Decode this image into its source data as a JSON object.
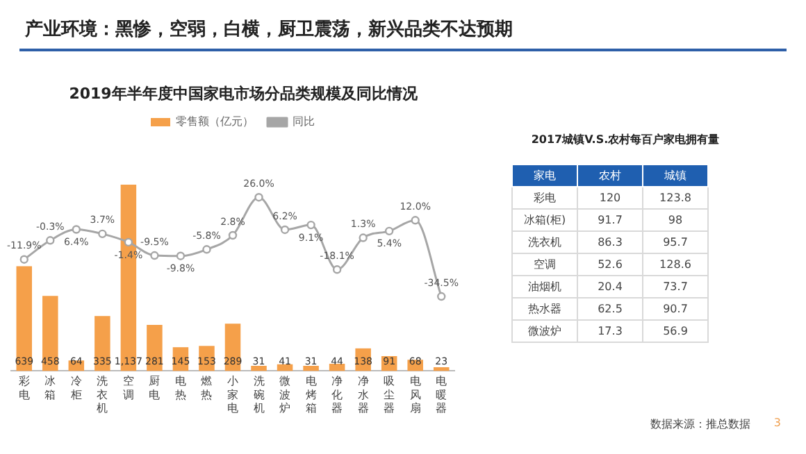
{
  "chart_data": [
    {
      "type": "bar",
      "title": "2019年半年度中国家电市场分品类规模及同比情况",
      "annotations": [
        "产业环境：黑惨，空弱，白横，厨卫震荡，新兴品类不达预期"
      ],
      "categories": [
        "彩电",
        "冰箱",
        "冷柜",
        "洗衣机",
        "空调",
        "厨电",
        "电热",
        "燃热",
        "小家电",
        "洗碗机",
        "微波炉",
        "电烤箱",
        "净化器",
        "净水器",
        "吸尘器",
        "电风扇",
        "电暖器"
      ],
      "series": [
        {
          "name": "零售额（亿元）",
          "color": "#f5a04a",
          "values": [
            639,
            458,
            64,
            335,
            1137,
            281,
            145,
            153,
            289,
            31,
            41,
            31,
            44,
            138,
            91,
            68,
            23
          ],
          "value_labels": [
            "639",
            "458",
            "64",
            "335",
            "1,137",
            "281",
            "145",
            "153",
            "289",
            "31",
            "41",
            "31",
            "44",
            "138",
            "91",
            "68",
            "23"
          ]
        },
        {
          "name": "同比",
          "type": "line",
          "axis": "y2",
          "color": "#a6a6a6",
          "values": [
            -11.9,
            -0.3,
            6.4,
            3.7,
            -1.4,
            -9.5,
            -9.8,
            -5.8,
            2.8,
            26.0,
            6.2,
            9.1,
            -18.1,
            1.3,
            5.4,
            12.0,
            -34.5
          ],
          "value_labels": [
            "-11.9%",
            "-0.3%",
            "6.4%",
            "3.7%",
            "-1.4%",
            "-9.5%",
            "-9.8%",
            "-5.8%",
            "2.8%",
            "26.0%",
            "6.2%",
            "9.1%",
            "-18.1%",
            "1.3%",
            "5.4%",
            "12.0%",
            "-34.5%"
          ]
        }
      ],
      "marker": "circle",
      "legend": "top",
      "grid": false,
      "tick_labels": "x"
    },
    {
      "type": "other",
      "title": "2017城镇V.S.农村每百户家电拥有量",
      "xlabel": "家电",
      "data_labels": true,
      "categories": [
        "彩电",
        "冰箱(柜)",
        "洗衣机",
        "空调",
        "油烟机",
        "热水器",
        "微波炉"
      ],
      "series": [
        {
          "name": "农村",
          "values": [
            120,
            91.7,
            86.3,
            52.6,
            20.4,
            62.5,
            17.3
          ]
        },
        {
          "name": "城镇",
          "values": [
            123.8,
            98,
            95.7,
            128.6,
            73.7,
            90.7,
            56.9
          ]
        }
      ],
      "annotations": [
        "数据来源：推总数据",
        "3"
      ]
    }
  ]
}
